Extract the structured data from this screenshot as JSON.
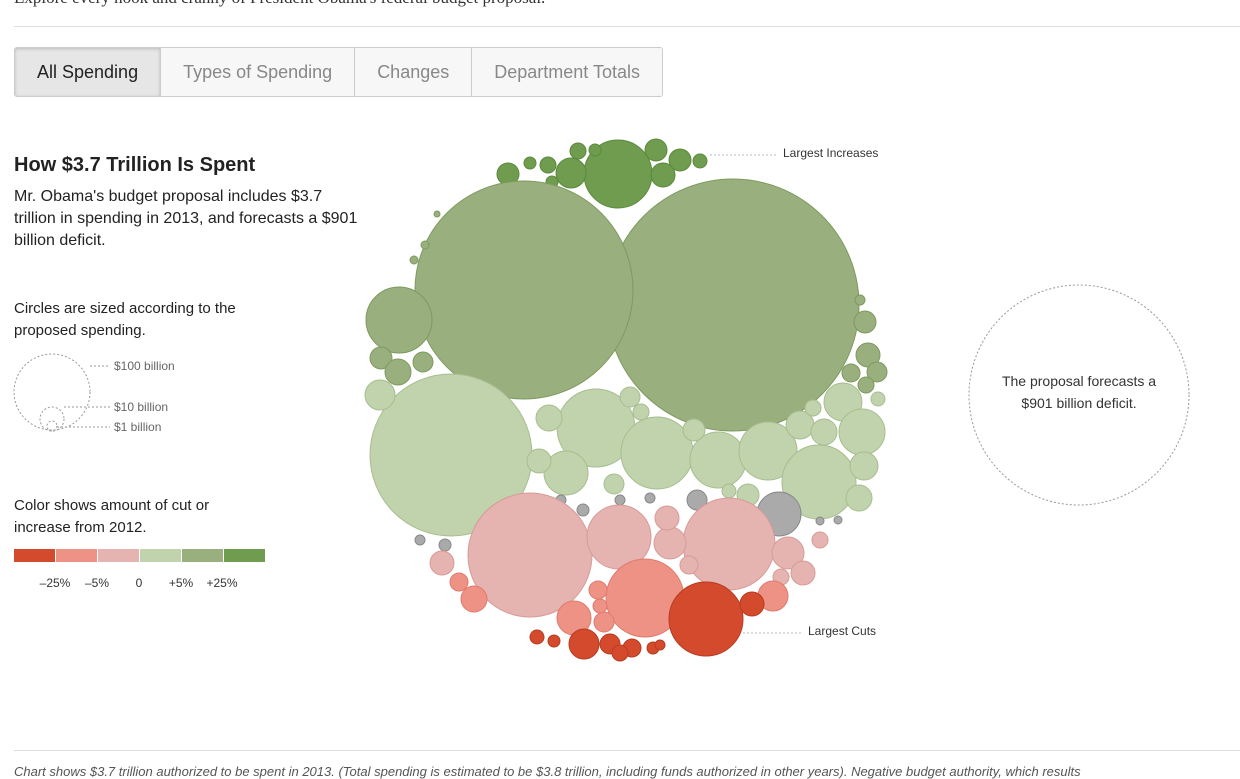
{
  "intro": "Explore every nook and cranny of President Obama's federal budget proposal.",
  "tabs": [
    "All Spending",
    "Types of Spending",
    "Changes",
    "Department Totals"
  ],
  "panel": {
    "title": "How $3.7 Trillion Is Spent",
    "description": "Mr. Obama's budget proposal includes $3.7 trillion in spending in 2013, and forecasts a $901 billion deficit.",
    "size_note": "Circles are sized according to the proposed spending.",
    "size_labels": [
      "$100 billion",
      "$10 billion",
      "$1 billion"
    ],
    "color_note": "Color shows amount of cut or increase from 2012.",
    "color_labels": [
      "–25%",
      "–5%",
      "0",
      "+5%",
      "+25%"
    ]
  },
  "annotations": {
    "increases": "Largest Increases",
    "cuts": "Largest Cuts",
    "deficit": "The proposal forecasts a $901 billion deficit."
  },
  "footer": "Chart shows $3.7 trillion authorized to be spent in 2013. (Total spending is estimated to be $3.8 trillion, including funds authorized in other years). Negative budget authority, which results"
}
